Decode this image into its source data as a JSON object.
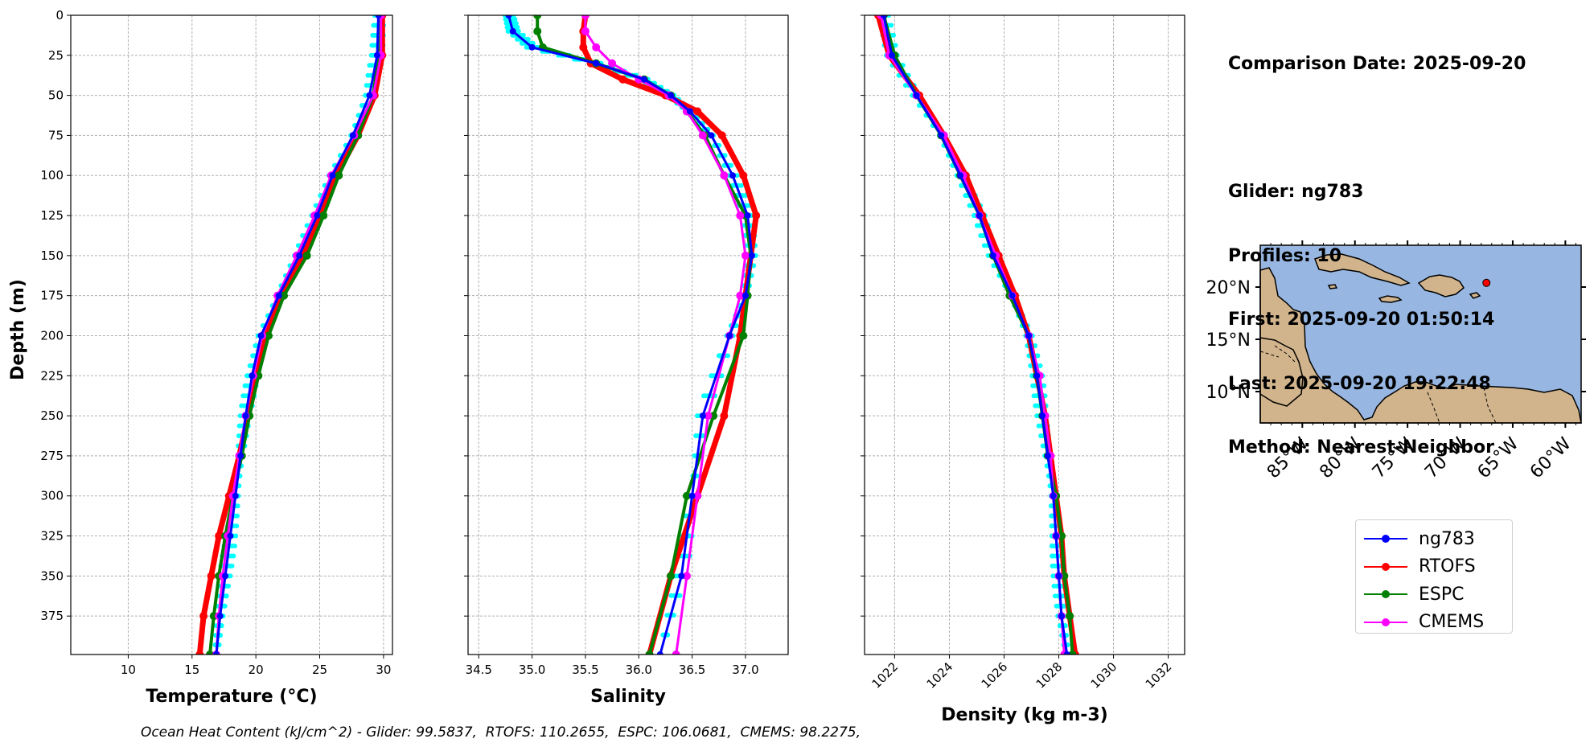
{
  "info": {
    "comparison_date": "Comparison Date: 2025-09-20",
    "glider": "Glider: ng783",
    "profiles": "Profiles: 10",
    "first": "First: 2025-09-20 01:50:14",
    "last": "Last: 2025-09-20 19:22:48",
    "method": "Method: Nearest-Neighbor"
  },
  "footer": "Ocean Heat Content (kJ/cm^2) - Glider: 99.5837,  RTOFS: 110.2655,  ESPC: 106.0681,  CMEMS: 98.2275,",
  "colors": {
    "ng783": "#0000ff",
    "RTOFS": "#ff0000",
    "ESPC": "#008000",
    "CMEMS": "#ff00ff",
    "glider_profiles": "#00ffff",
    "ocean": "#97b6e1",
    "land": "#d2b48c"
  },
  "legend": [
    "ng783",
    "RTOFS",
    "ESPC",
    "CMEMS"
  ],
  "chart_data": [
    {
      "type": "line",
      "xlabel": "Temperature (°C)",
      "ylabel": "Depth (m)",
      "xlim": [
        5.5,
        30.7
      ],
      "ylim": [
        399,
        0
      ],
      "xticks": [
        10,
        15,
        20,
        25,
        30
      ],
      "yticks": [
        0,
        25,
        50,
        75,
        100,
        125,
        150,
        175,
        200,
        225,
        250,
        275,
        300,
        325,
        350,
        375
      ],
      "grid": true,
      "depth": [
        0,
        25,
        50,
        75,
        100,
        125,
        150,
        175,
        200,
        225,
        250,
        275,
        300,
        325,
        350,
        375,
        399
      ],
      "series": [
        {
          "name": "ng783",
          "values": [
            29.6,
            29.5,
            28.9,
            27.6,
            26.0,
            24.8,
            23.4,
            21.8,
            20.4,
            19.7,
            19.2,
            18.8,
            18.4,
            18.0,
            17.6,
            17.2,
            16.9
          ]
        },
        {
          "name": "RTOFS",
          "values": [
            29.9,
            29.9,
            29.3,
            28.0,
            26.3,
            25.1,
            23.7,
            22.0,
            20.8,
            20.1,
            19.4,
            18.7,
            17.9,
            17.1,
            16.5,
            15.9,
            15.6
          ]
        },
        {
          "name": "ESPC",
          "values": [
            29.7,
            29.6,
            29.2,
            28.0,
            26.5,
            25.3,
            24.0,
            22.2,
            21.0,
            20.2,
            19.5,
            18.9,
            18.2,
            17.6,
            17.1,
            16.7,
            16.4
          ]
        },
        {
          "name": "CMEMS",
          "values": [
            29.8,
            29.8,
            29.2,
            27.7,
            25.9,
            24.6,
            23.2,
            21.7,
            20.5,
            19.8,
            19.2,
            18.7,
            18.2,
            17.8,
            17.4,
            17.1,
            16.9
          ]
        }
      ]
    },
    {
      "type": "line",
      "xlabel": "Salinity",
      "xlim": [
        34.4,
        37.4
      ],
      "ylim": [
        399,
        0
      ],
      "xticks": [
        34.5,
        35.0,
        35.5,
        36.0,
        36.5,
        37.0
      ],
      "grid": true,
      "depth": [
        0,
        10,
        20,
        30,
        40,
        50,
        60,
        75,
        100,
        125,
        150,
        175,
        200,
        250,
        300,
        350,
        399
      ],
      "series": [
        {
          "name": "ng783",
          "values": [
            34.78,
            34.82,
            35.0,
            35.6,
            36.05,
            36.3,
            36.48,
            36.68,
            36.88,
            37.02,
            37.06,
            37.0,
            36.85,
            36.6,
            36.5,
            36.4,
            36.2
          ]
        },
        {
          "name": "RTOFS",
          "values": [
            35.5,
            35.48,
            35.48,
            35.55,
            35.85,
            36.25,
            36.55,
            36.78,
            36.98,
            37.1,
            37.05,
            37.0,
            36.95,
            36.8,
            36.55,
            36.3,
            36.1
          ]
        },
        {
          "name": "ESPC",
          "values": [
            35.05,
            35.05,
            35.1,
            35.6,
            36.05,
            36.3,
            36.45,
            36.62,
            36.8,
            37.0,
            37.05,
            37.02,
            36.98,
            36.7,
            36.45,
            36.3,
            36.1
          ]
        },
        {
          "name": "CMEMS",
          "values": [
            35.5,
            35.5,
            35.6,
            35.75,
            36.0,
            36.28,
            36.45,
            36.6,
            36.8,
            36.95,
            37.0,
            36.95,
            36.85,
            36.65,
            36.55,
            36.45,
            36.35
          ]
        }
      ]
    },
    {
      "type": "line",
      "xlabel": "Density (kg m-3)",
      "xlim": [
        1020.9,
        1032.6
      ],
      "ylim": [
        399,
        0
      ],
      "xticks": [
        1022,
        1024,
        1026,
        1028,
        1030,
        1032
      ],
      "grid": true,
      "depth": [
        0,
        25,
        50,
        75,
        100,
        125,
        150,
        175,
        200,
        225,
        250,
        275,
        300,
        325,
        350,
        375,
        399
      ],
      "series": [
        {
          "name": "ng783",
          "values": [
            1021.6,
            1021.9,
            1022.8,
            1023.7,
            1024.4,
            1025.1,
            1025.6,
            1026.3,
            1026.9,
            1027.2,
            1027.4,
            1027.6,
            1027.8,
            1027.9,
            1028.0,
            1028.1,
            1028.3
          ]
        },
        {
          "name": "RTOFS",
          "values": [
            1021.4,
            1021.8,
            1022.9,
            1023.8,
            1024.6,
            1025.2,
            1025.8,
            1026.4,
            1026.9,
            1027.2,
            1027.5,
            1027.7,
            1027.9,
            1028.1,
            1028.2,
            1028.4,
            1028.6
          ]
        },
        {
          "name": "ESPC",
          "values": [
            1021.6,
            1022.0,
            1022.8,
            1023.7,
            1024.4,
            1025.1,
            1025.6,
            1026.2,
            1026.9,
            1027.2,
            1027.4,
            1027.6,
            1027.9,
            1028.1,
            1028.2,
            1028.4,
            1028.5
          ]
        },
        {
          "name": "CMEMS",
          "values": [
            1021.5,
            1021.8,
            1022.8,
            1023.8,
            1024.5,
            1025.1,
            1025.7,
            1026.3,
            1026.9,
            1027.3,
            1027.5,
            1027.7,
            1027.8,
            1027.9,
            1028.0,
            1028.1,
            1028.2
          ]
        }
      ]
    }
  ],
  "map": {
    "xticks": [
      -85,
      -80,
      -75,
      -70,
      -65,
      -60
    ],
    "xtick_labels": [
      "85°W",
      "80°W",
      "75°W",
      "70°W",
      "65°W",
      "60°W"
    ],
    "yticks": [
      10,
      15,
      20
    ],
    "ytick_labels": [
      "10°N",
      "15°N",
      "20°N"
    ],
    "lon_range": [
      -89,
      -58.5
    ],
    "lat_range": [
      7,
      24
    ],
    "glider_position": {
      "lon": -67.5,
      "lat": 20.4
    }
  }
}
